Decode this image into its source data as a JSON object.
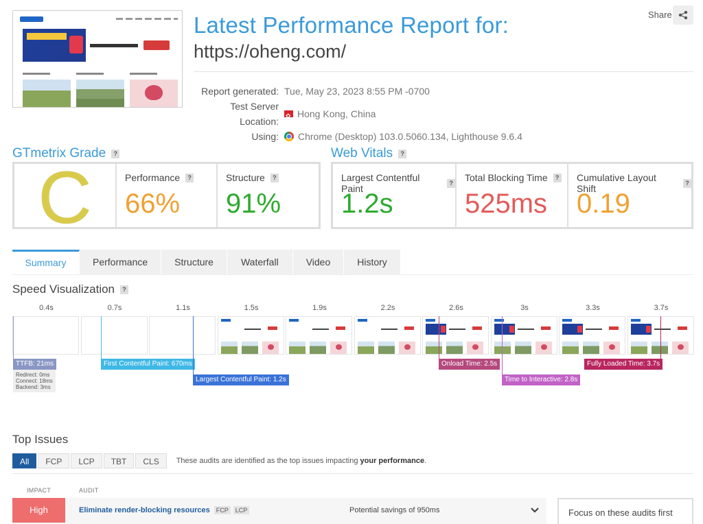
{
  "header": {
    "title": "Latest Performance Report for:",
    "url": "https://oheng.com/",
    "share_label": "Share",
    "share_icon": "share-icon",
    "meta": [
      {
        "label": "Report generated:",
        "value": "Tue, May 23, 2023 8:55 PM -0700",
        "icon": ""
      },
      {
        "label": "Test Server Location:",
        "value": "Hong Kong, China",
        "icon": "hong-kong-flag-icon"
      },
      {
        "label": "Using:",
        "value": "Chrome (Desktop) 103.0.5060.134, Lighthouse 9.6.4",
        "icon": "chrome-icon"
      }
    ]
  },
  "grade": {
    "title": "GTmetrix Grade",
    "letter": "C",
    "performance_label": "Performance",
    "performance_value": "66%",
    "structure_label": "Structure",
    "structure_value": "91%",
    "colors": {
      "grade": "#d9cb4a",
      "performance": "#f0a030",
      "structure": "#2eaa2e"
    }
  },
  "vitals": {
    "title": "Web Vitals",
    "lcp_label": "Largest Contentful Paint",
    "lcp_value": "1.2s",
    "tbt_label": "Total Blocking Time",
    "tbt_value": "525ms",
    "cls_label": "Cumulative Layout Shift",
    "cls_value": "0.19",
    "colors": {
      "lcp": "#2eaa2e",
      "tbt": "#e25b5b",
      "cls": "#f0a030"
    }
  },
  "tabs": [
    "Summary",
    "Performance",
    "Structure",
    "Waterfall",
    "Video",
    "History"
  ],
  "speed": {
    "title": "Speed Visualization",
    "frame_times": [
      "0.4s",
      "0.7s",
      "1.1s",
      "1.5s",
      "1.9s",
      "2.2s",
      "2.6s",
      "3s",
      "3.3s",
      "3.7s"
    ],
    "ttfb": "TTFB: 21ms",
    "ttfb_redirect": "Redirect: 0ms",
    "ttfb_connect": "Connect: 18ms",
    "ttfb_backend": "Backend: 3ms",
    "fcp": "First Contentful Paint: 670ms",
    "lcp": "Largest Contentful Paint: 1.2s",
    "onload": "Onload Time: 2.5s",
    "tti": "Time to Interactive: 2.8s",
    "fully_loaded": "Fully Loaded Time: 3.7s",
    "colors": {
      "ttfb": "#8a97c4",
      "fcp": "#3fb8e6",
      "lcp": "#3a72d8",
      "onload": "#b5497d",
      "tti": "#c162c6",
      "fully": "#b8265f"
    }
  },
  "issues": {
    "title": "Top Issues",
    "filters": [
      "All",
      "FCP",
      "LCP",
      "TBT",
      "CLS"
    ],
    "note_prefix": "These audits are identified as the top issues impacting",
    "note_bold": "your performance",
    "note_suffix": ".",
    "col_impact": "IMPACT",
    "col_audit": "AUDIT",
    "rows": [
      {
        "impact": "High",
        "audit": "Eliminate render-blocking resources",
        "chips": [
          "FCP",
          "LCP"
        ],
        "savings": "Potential savings of 950ms"
      }
    ],
    "focus_title": "Focus on these audits first"
  }
}
